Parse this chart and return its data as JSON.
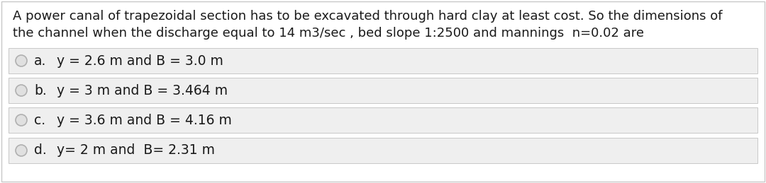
{
  "title_line1": "A power canal of trapezoidal section has to be excavated through hard clay at least cost. So the dimensions of",
  "title_line2": "the channel when the discharge equal to 14 m3/sec , bed slope 1:2500 and mannings  n=0.02 are",
  "options": [
    {
      "label": "a.",
      "text": "y = 2.6 m and B = 3.0 m"
    },
    {
      "label": "b.",
      "text": "y = 3 m and B = 3.464 m"
    },
    {
      "label": "c.",
      "text": "y = 3.6 m and B = 4.16 m"
    },
    {
      "label": "d.",
      "text": "y= 2 m and  B= 2.31 m"
    }
  ],
  "bg_color": "#ffffff",
  "option_bg_color": "#efefef",
  "border_color": "#c8c8c8",
  "text_color": "#1a1a1a",
  "circle_edge_color": "#b0b0b0",
  "circle_face_color": "#e0e0e0",
  "title_fontsize": 13.0,
  "option_fontsize": 13.5,
  "label_fontsize": 13.5
}
